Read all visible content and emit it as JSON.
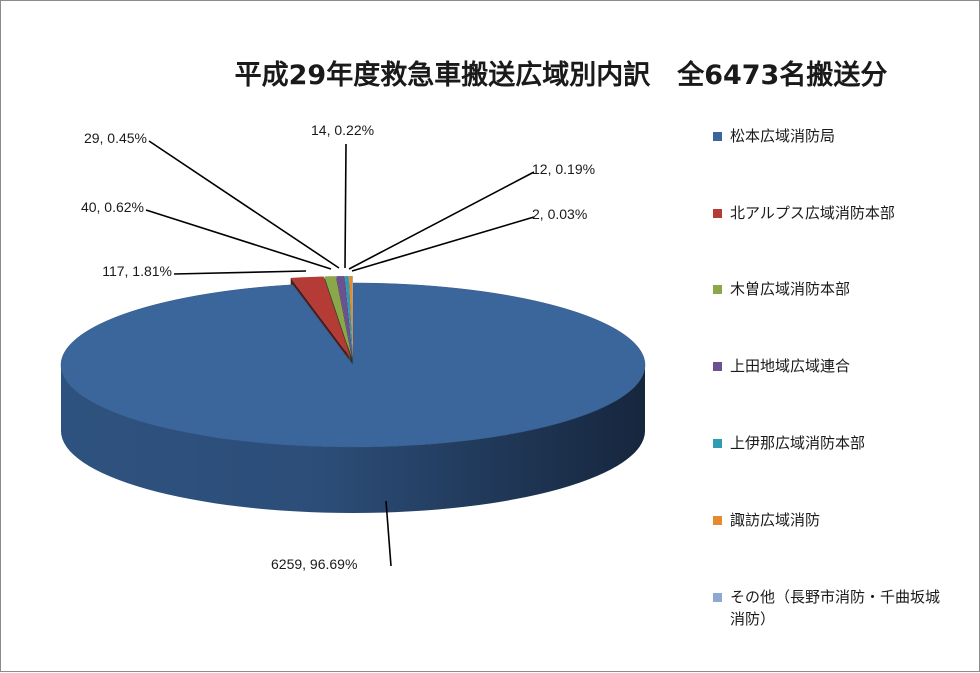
{
  "chart_data": {
    "type": "pie",
    "title": "平成29年度救急車搬送広域別内訳　全6473名搬送分",
    "slices": [
      {
        "name": "松本広域消防局",
        "value": 6259,
        "percent": "96.69%",
        "label": "6259, 96.69%",
        "color": "#3B669B"
      },
      {
        "name": "北アルプス広域消防本部",
        "value": 117,
        "percent": "1.81%",
        "label": "117, 1.81%",
        "color": "#B43B36"
      },
      {
        "name": "木曽広域消防本部",
        "value": 40,
        "percent": "0.62%",
        "label": "40, 0.62%",
        "color": "#8AA84A"
      },
      {
        "name": "上田地域広域連合",
        "value": 29,
        "percent": "0.45%",
        "label": "29, 0.45%",
        "color": "#6C5190"
      },
      {
        "name": "上伊那広域消防本部",
        "value": 14,
        "percent": "0.22%",
        "label": "14, 0.22%",
        "color": "#2F9CB4"
      },
      {
        "name": "諏訪広域消防",
        "value": 12,
        "percent": "0.19%",
        "label": "12, 0.19%",
        "color": "#E58A30"
      },
      {
        "name": "その他（長野市消防・千曲坂城消防）",
        "value": 2,
        "percent": "0.03%",
        "label": "2, 0.03%",
        "color": "#8EA8D4"
      }
    ],
    "legend_position": "right"
  }
}
